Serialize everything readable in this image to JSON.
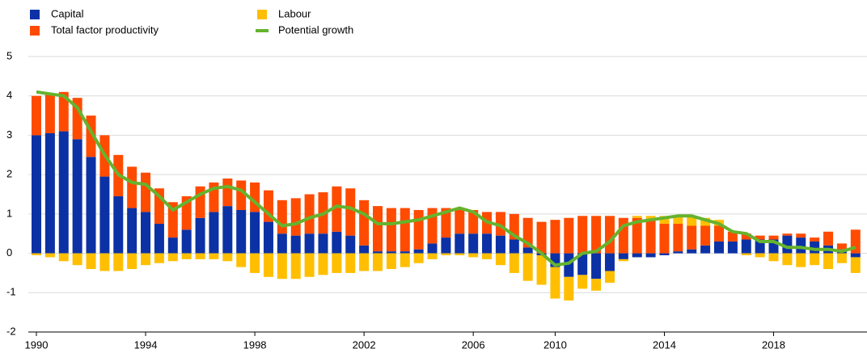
{
  "chart_data": {
    "type": "bar",
    "stacked": true,
    "categories": [
      "1990",
      null,
      null,
      null,
      null,
      null,
      null,
      null,
      "1994",
      null,
      null,
      null,
      null,
      null,
      null,
      null,
      "1998",
      null,
      null,
      null,
      null,
      null,
      null,
      null,
      "2002",
      null,
      null,
      null,
      null,
      null,
      null,
      null,
      "2006",
      null,
      null,
      null,
      null,
      null,
      "2010",
      null,
      null,
      null,
      null,
      null,
      null,
      null,
      "2014",
      null,
      null,
      null,
      null,
      null,
      null,
      null,
      "2018",
      null,
      null,
      null,
      null,
      null,
      null
    ],
    "series": [
      {
        "name": "Capital",
        "color": "#0b31a5",
        "values": [
          3.0,
          3.05,
          3.1,
          2.9,
          2.45,
          1.95,
          1.45,
          1.15,
          1.05,
          0.75,
          0.4,
          0.6,
          0.9,
          1.05,
          1.2,
          1.1,
          1.05,
          0.8,
          0.5,
          0.45,
          0.5,
          0.5,
          0.55,
          0.45,
          0.2,
          0.05,
          0.05,
          0.05,
          0.1,
          0.25,
          0.4,
          0.5,
          0.5,
          0.5,
          0.45,
          0.35,
          0.15,
          -0.05,
          -0.35,
          -0.6,
          -0.55,
          -0.65,
          -0.45,
          -0.15,
          -0.1,
          -0.1,
          -0.05,
          0.05,
          0.1,
          0.2,
          0.3,
          0.3,
          0.35,
          0.35,
          0.35,
          0.45,
          0.4,
          0.3,
          0.2,
          0.1,
          -0.1
        ]
      },
      {
        "name": "Total factor productivity",
        "color": "#ff4b00",
        "values": [
          1.0,
          1.0,
          1.0,
          1.05,
          1.05,
          1.05,
          1.05,
          1.05,
          1.0,
          0.9,
          0.9,
          0.85,
          0.8,
          0.75,
          0.7,
          0.75,
          0.75,
          0.8,
          0.85,
          0.95,
          1.0,
          1.05,
          1.15,
          1.2,
          1.15,
          1.15,
          1.1,
          1.1,
          1.0,
          0.9,
          0.75,
          0.65,
          0.6,
          0.55,
          0.6,
          0.65,
          0.75,
          0.8,
          0.85,
          0.9,
          0.95,
          0.95,
          0.95,
          0.9,
          0.9,
          0.85,
          0.75,
          0.7,
          0.6,
          0.5,
          0.4,
          0.25,
          0.15,
          0.1,
          0.1,
          0.05,
          0.1,
          0.1,
          0.35,
          0.15,
          0.6
        ]
      },
      {
        "name": "Labour",
        "color": "#ffbf00",
        "values": [
          -0.05,
          -0.1,
          -0.2,
          -0.3,
          -0.4,
          -0.45,
          -0.45,
          -0.4,
          -0.3,
          -0.25,
          -0.2,
          -0.15,
          -0.15,
          -0.15,
          -0.2,
          -0.35,
          -0.5,
          -0.6,
          -0.65,
          -0.65,
          -0.6,
          -0.55,
          -0.5,
          -0.5,
          -0.45,
          -0.45,
          -0.4,
          -0.35,
          -0.25,
          -0.15,
          -0.05,
          -0.05,
          -0.1,
          -0.15,
          -0.3,
          -0.5,
          -0.7,
          -0.75,
          -0.8,
          -0.6,
          -0.35,
          -0.3,
          -0.3,
          -0.05,
          0.05,
          0.1,
          0.2,
          0.2,
          0.25,
          0.2,
          0.15,
          0.0,
          -0.05,
          -0.1,
          -0.2,
          -0.3,
          -0.35,
          -0.3,
          -0.4,
          -0.25,
          -0.4
        ]
      },
      {
        "name": "Potential growth",
        "color": "#65b32e",
        "type": "line",
        "values": [
          4.1,
          4.05,
          4.0,
          3.7,
          3.1,
          2.5,
          2.0,
          1.8,
          1.75,
          1.45,
          1.1,
          1.3,
          1.5,
          1.65,
          1.7,
          1.6,
          1.3,
          1.0,
          0.7,
          0.75,
          0.9,
          1.0,
          1.2,
          1.15,
          1.0,
          0.75,
          0.75,
          0.8,
          0.85,
          0.95,
          1.05,
          1.15,
          1.05,
          0.8,
          0.7,
          0.45,
          0.25,
          0.0,
          -0.3,
          -0.25,
          0.0,
          0.05,
          0.3,
          0.7,
          0.8,
          0.85,
          0.9,
          0.95,
          0.95,
          0.85,
          0.75,
          0.55,
          0.5,
          0.3,
          0.3,
          0.15,
          0.15,
          0.1,
          0.1,
          0.05,
          0.15
        ]
      }
    ],
    "ylim": [
      -2,
      5
    ],
    "yticks": [
      -2,
      -1,
      0,
      1,
      2,
      3,
      4,
      5
    ],
    "grid": true
  }
}
